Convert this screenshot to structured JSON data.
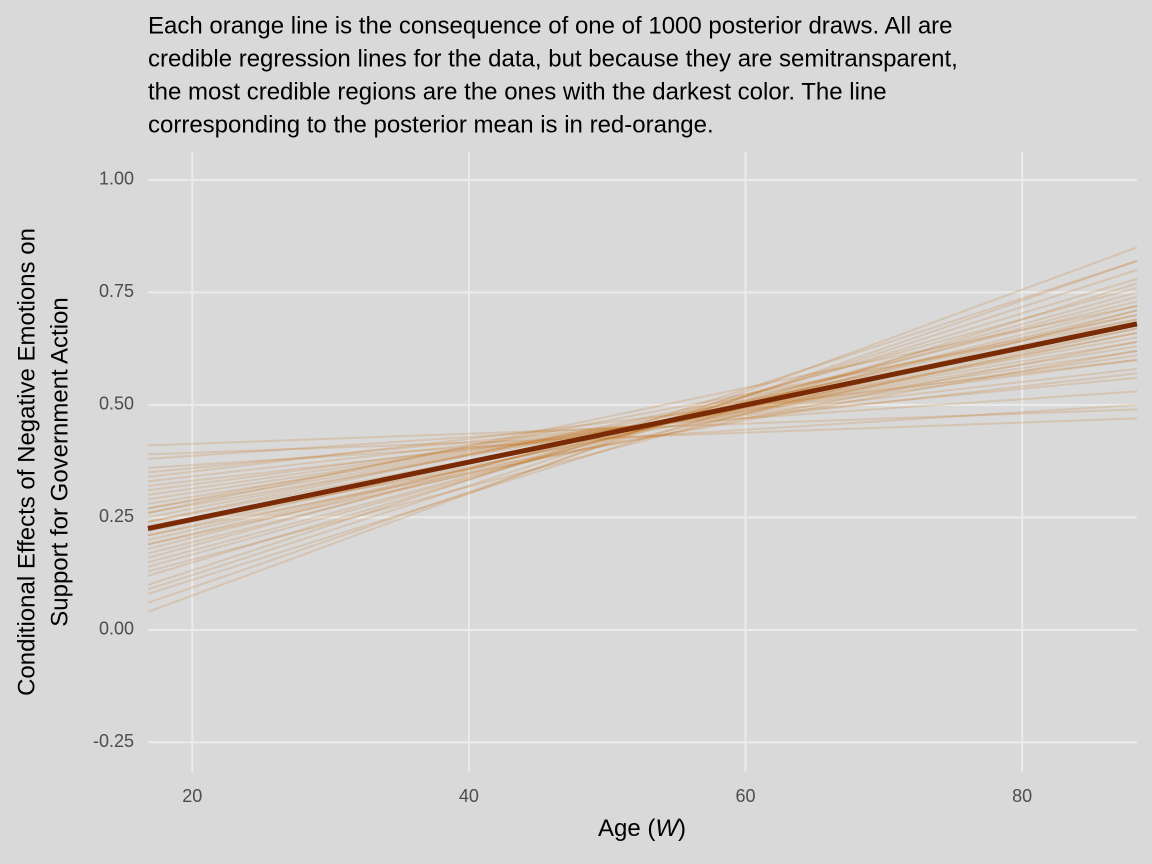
{
  "chart_data": {
    "type": "line",
    "title": [
      "Each orange line is the consequence of one of 1000 posterior draws. All are",
      "credible regression lines for the data, but because they are semitransparent,",
      "the most credible regions are the ones with the darkest color. The line",
      "corresponding to the posterior mean is in red-orange."
    ],
    "xlabel": [
      "Age (",
      "W",
      ")"
    ],
    "ylabel": [
      "Conditional Effects of Negative Emotions on",
      "Support for Government Action"
    ],
    "x": [
      16.8,
      88.3
    ],
    "draws": [
      [
        0.225,
        0.68
      ],
      [
        0.26,
        0.65
      ],
      [
        0.19,
        0.71
      ],
      [
        0.3,
        0.61
      ],
      [
        0.15,
        0.74
      ],
      [
        0.24,
        0.66
      ],
      [
        0.21,
        0.7
      ],
      [
        0.28,
        0.63
      ],
      [
        0.17,
        0.72
      ],
      [
        0.33,
        0.58
      ],
      [
        0.12,
        0.78
      ],
      [
        0.23,
        0.67
      ],
      [
        0.2,
        0.69
      ],
      [
        0.27,
        0.64
      ],
      [
        0.18,
        0.73
      ],
      [
        0.35,
        0.56
      ],
      [
        0.09,
        0.8
      ],
      [
        0.25,
        0.68
      ],
      [
        0.22,
        0.66
      ],
      [
        0.29,
        0.62
      ],
      [
        0.16,
        0.76
      ],
      [
        0.38,
        0.53
      ],
      [
        0.06,
        0.82
      ],
      [
        0.41,
        0.49
      ],
      [
        0.04,
        0.85
      ],
      [
        0.31,
        0.6
      ],
      [
        0.14,
        0.75
      ],
      [
        0.24,
        0.7
      ],
      [
        0.21,
        0.64
      ],
      [
        0.36,
        0.5
      ],
      [
        0.1,
        0.82
      ],
      [
        0.27,
        0.69
      ],
      [
        0.19,
        0.67
      ],
      [
        0.32,
        0.57
      ],
      [
        0.13,
        0.71
      ],
      [
        0.39,
        0.47
      ],
      [
        0.08,
        0.77
      ],
      [
        0.26,
        0.72
      ],
      [
        0.23,
        0.62
      ],
      [
        0.34,
        0.6
      ]
    ],
    "draw_color": "#c46400",
    "mean": [
      0.225,
      0.68
    ],
    "mean_color": "#7a2a05",
    "xlim": [
      16.8,
      88.3
    ],
    "xticks": [
      20,
      40,
      60,
      80
    ],
    "ylim": [
      -0.316,
      1.062
    ],
    "yticks": [
      {
        "value": -0.25,
        "label": "-0.25"
      },
      {
        "value": 0,
        "label": "0.00"
      },
      {
        "value": 0.25,
        "label": "0.25"
      },
      {
        "value": 0.5,
        "label": "0.50"
      },
      {
        "value": 0.75,
        "label": "0.75"
      },
      {
        "value": 1,
        "label": "1.00"
      }
    ],
    "grid": true
  }
}
